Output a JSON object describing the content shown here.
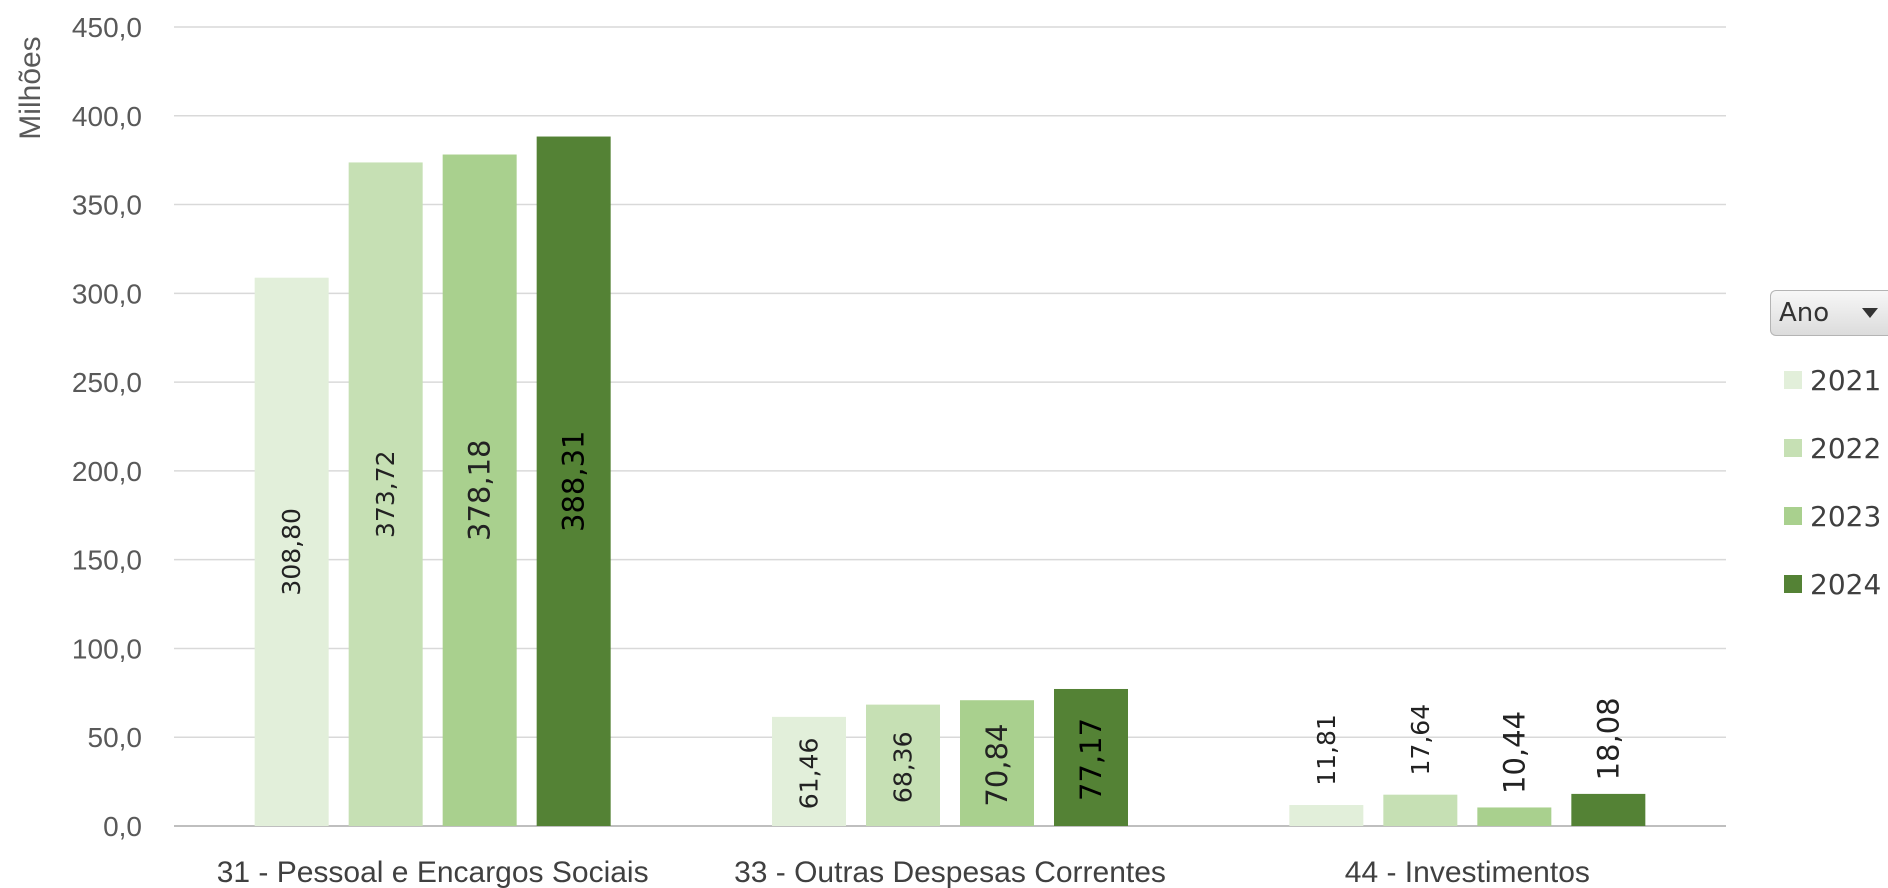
{
  "chart_data": {
    "type": "bar",
    "ylabel": "Milhões",
    "ylim": [
      0,
      450
    ],
    "yticks": [
      "0,0",
      "50,0",
      "100,0",
      "150,0",
      "200,0",
      "250,0",
      "300,0",
      "350,0",
      "400,0",
      "450,0"
    ],
    "categories": [
      "31 - Pessoal e Encargos Sociais",
      "33 - Outras Despesas Correntes",
      "44 - Investimentos"
    ],
    "series": [
      {
        "name": "2021",
        "color": "#e2efda",
        "values": [
          308.8,
          61.46,
          11.81
        ],
        "labels": [
          "308,80",
          "61,46",
          "11,81"
        ]
      },
      {
        "name": "2022",
        "color": "#c6e0b4",
        "values": [
          373.72,
          68.36,
          17.64
        ],
        "labels": [
          "373,72",
          "68,36",
          "17,64"
        ]
      },
      {
        "name": "2023",
        "color": "#a9d08e",
        "values": [
          378.18,
          70.84,
          10.44
        ],
        "labels": [
          "378,18",
          "70,84",
          "10,44"
        ]
      },
      {
        "name": "2024",
        "color": "#548235",
        "values": [
          388.31,
          77.17,
          18.08
        ],
        "labels": [
          "388,31",
          "77,17",
          "18,08"
        ]
      }
    ],
    "grid": true,
    "legend": {
      "title": "Ano",
      "position": "right"
    }
  }
}
